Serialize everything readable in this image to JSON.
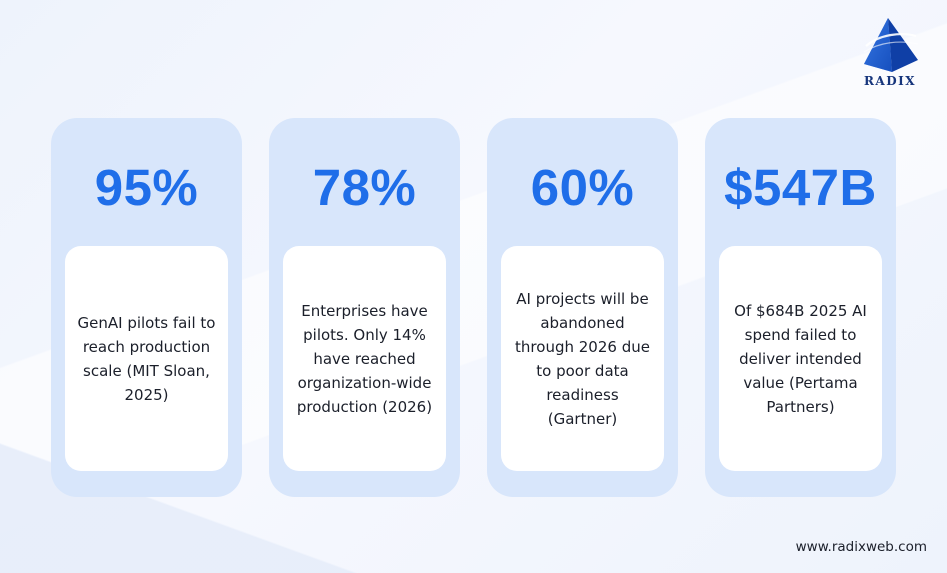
{
  "brand": {
    "name": "RADIX",
    "website": "www.radixweb.com",
    "primary_color": "#1f6ee9",
    "logo_color": "#1554c8"
  },
  "cards": [
    {
      "stat": "95%",
      "description": "GenAI pilots fail to reach production scale (MIT Sloan, 2025)"
    },
    {
      "stat": "78%",
      "description": "Enterprises have pilots. Only 14% have reached organization-wide production (2026)"
    },
    {
      "stat": "60%",
      "description": "AI projects will be abandoned through 2026 due to poor data readiness (Gartner)"
    },
    {
      "stat": "$547B",
      "description": "Of $684B 2025 AI spend failed to deliver intended value (Pertama Partners)"
    }
  ]
}
